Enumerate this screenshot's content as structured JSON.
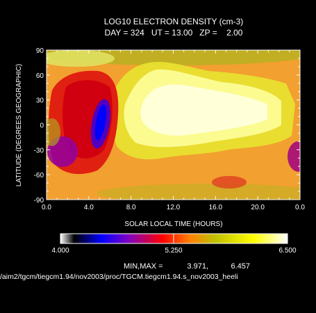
{
  "chart_data": {
    "type": "heatmap",
    "title": "LOG10 ELECTRON DENSITY (cm-3)",
    "subtitle": "DAY = 324   UT = 13.00   ZP =    2.00",
    "xlabel": "SOLAR LOCAL TIME (HOURS)",
    "ylabel": "LATITUDE (DEGREES GEOGRAPHIC)",
    "xlim": [
      0,
      24
    ],
    "ylim": [
      -90,
      90
    ],
    "x_ticks": [
      "0.0",
      "4.0",
      "8.0",
      "12.0",
      "16.0",
      "20.0",
      "0.0"
    ],
    "y_ticks": [
      "90",
      "60",
      "30",
      "0",
      "-30",
      "-60",
      "-90"
    ],
    "colorbar": {
      "min": 4.0,
      "max": 6.5,
      "labels": [
        "4.000",
        "5.250",
        "6.500"
      ],
      "colors": [
        "#ffffff",
        "#000000",
        "#0000ff",
        "#8000c0",
        "#ff0000",
        "#ff8000",
        "#c0c000",
        "#ffff00",
        "#ffffff"
      ]
    },
    "minmax_label": "MIN,MAX =",
    "min_value": "3.971,",
    "max_value": "6.457",
    "file_path": "/aim2/tgcm/tiegcm1.94/nov2003/proc/TGCM.tiegcm1.94.s_nov2003_heeli"
  }
}
